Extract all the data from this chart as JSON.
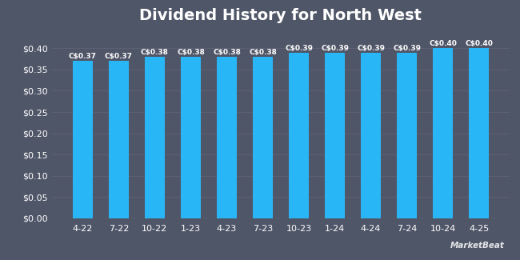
{
  "title": "Dividend History for North West",
  "categories": [
    "4-22",
    "7-22",
    "10-22",
    "1-23",
    "4-23",
    "7-23",
    "10-23",
    "1-24",
    "4-24",
    "7-24",
    "10-24",
    "4-25"
  ],
  "values": [
    0.37,
    0.37,
    0.38,
    0.38,
    0.38,
    0.38,
    0.39,
    0.39,
    0.39,
    0.39,
    0.4,
    0.4
  ],
  "labels": [
    "C$0.37",
    "C$0.37",
    "C$0.38",
    "C$0.38",
    "C$0.38",
    "C$0.38",
    "C$0.39",
    "C$0.39",
    "C$0.39",
    "C$0.39",
    "C$0.40",
    "C$0.40"
  ],
  "bar_color": "#29b6f6",
  "background_color": "#4f5668",
  "plot_bg_color": "#4f5668",
  "grid_color": "#606375",
  "text_color": "#ffffff",
  "axis_line_color": "#888899",
  "title_fontsize": 14,
  "label_fontsize": 6.5,
  "tick_fontsize": 8,
  "bar_width": 0.55,
  "ylim_max": 0.44,
  "yticks": [
    0.0,
    0.05,
    0.1,
    0.15,
    0.2,
    0.25,
    0.3,
    0.35,
    0.4
  ]
}
